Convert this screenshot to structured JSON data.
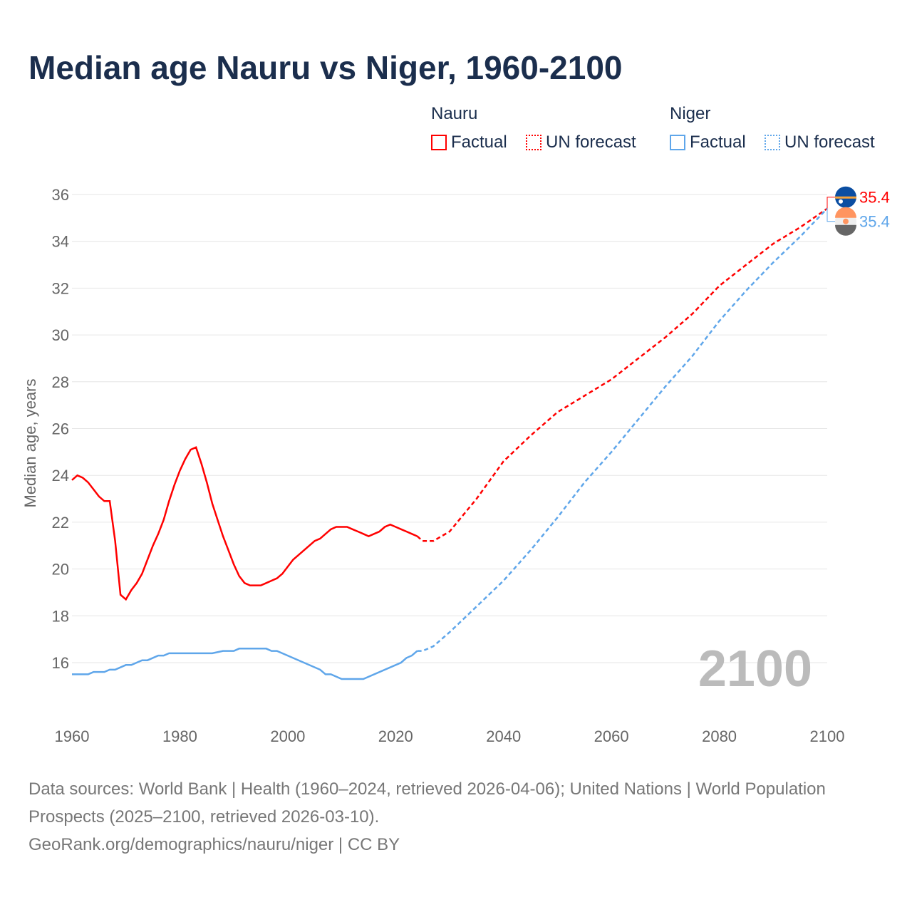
{
  "chart_data": {
    "type": "line",
    "title": "Median age Nauru vs Niger, 1960-2100",
    "ylabel": "Median age, years",
    "xlim": [
      1960,
      2100
    ],
    "ylim": [
      14,
      36.5
    ],
    "xticks": [
      1960,
      1980,
      2000,
      2020,
      2040,
      2060,
      2080,
      2100
    ],
    "yticks": [
      16,
      18,
      20,
      22,
      24,
      26,
      28,
      30,
      32,
      34,
      36
    ],
    "year_label": "2100",
    "legend": {
      "groups": [
        {
          "name": "Nauru",
          "items": [
            "Factual",
            "UN forecast"
          ]
        },
        {
          "name": "Niger",
          "items": [
            "Factual",
            "UN forecast"
          ]
        }
      ]
    },
    "series": [
      {
        "name": "Nauru",
        "color": "#ff0000",
        "end_label": "35.4",
        "factual": [
          [
            1960,
            23.8
          ],
          [
            1961,
            24.0
          ],
          [
            1962,
            23.9
          ],
          [
            1963,
            23.7
          ],
          [
            1964,
            23.4
          ],
          [
            1965,
            23.1
          ],
          [
            1966,
            22.9
          ],
          [
            1967,
            22.9
          ],
          [
            1968,
            21.2
          ],
          [
            1969,
            18.9
          ],
          [
            1970,
            18.7
          ],
          [
            1971,
            19.1
          ],
          [
            1972,
            19.4
          ],
          [
            1973,
            19.8
          ],
          [
            1974,
            20.4
          ],
          [
            1975,
            21.0
          ],
          [
            1976,
            21.5
          ],
          [
            1977,
            22.1
          ],
          [
            1978,
            22.9
          ],
          [
            1979,
            23.6
          ],
          [
            1980,
            24.2
          ],
          [
            1981,
            24.7
          ],
          [
            1982,
            25.1
          ],
          [
            1983,
            25.2
          ],
          [
            1984,
            24.5
          ],
          [
            1985,
            23.7
          ],
          [
            1986,
            22.8
          ],
          [
            1987,
            22.1
          ],
          [
            1988,
            21.4
          ],
          [
            1989,
            20.8
          ],
          [
            1990,
            20.2
          ],
          [
            1991,
            19.7
          ],
          [
            1992,
            19.4
          ],
          [
            1993,
            19.3
          ],
          [
            1994,
            19.3
          ],
          [
            1995,
            19.3
          ],
          [
            1996,
            19.4
          ],
          [
            1997,
            19.5
          ],
          [
            1998,
            19.6
          ],
          [
            1999,
            19.8
          ],
          [
            2000,
            20.1
          ],
          [
            2001,
            20.4
          ],
          [
            2002,
            20.6
          ],
          [
            2003,
            20.8
          ],
          [
            2004,
            21.0
          ],
          [
            2005,
            21.2
          ],
          [
            2006,
            21.3
          ],
          [
            2007,
            21.5
          ],
          [
            2008,
            21.7
          ],
          [
            2009,
            21.8
          ],
          [
            2010,
            21.8
          ],
          [
            2011,
            21.8
          ],
          [
            2012,
            21.7
          ],
          [
            2013,
            21.6
          ],
          [
            2014,
            21.5
          ],
          [
            2015,
            21.4
          ],
          [
            2016,
            21.5
          ],
          [
            2017,
            21.6
          ],
          [
            2018,
            21.8
          ],
          [
            2019,
            21.9
          ],
          [
            2020,
            21.8
          ],
          [
            2021,
            21.7
          ],
          [
            2022,
            21.6
          ],
          [
            2023,
            21.5
          ],
          [
            2024,
            21.4
          ]
        ],
        "forecast": [
          [
            2024,
            21.4
          ],
          [
            2025,
            21.2
          ],
          [
            2027,
            21.2
          ],
          [
            2030,
            21.6
          ],
          [
            2035,
            23.0
          ],
          [
            2040,
            24.6
          ],
          [
            2045,
            25.7
          ],
          [
            2050,
            26.7
          ],
          [
            2055,
            27.4
          ],
          [
            2060,
            28.1
          ],
          [
            2065,
            29.0
          ],
          [
            2070,
            29.9
          ],
          [
            2075,
            30.9
          ],
          [
            2080,
            32.1
          ],
          [
            2085,
            33.0
          ],
          [
            2090,
            33.9
          ],
          [
            2095,
            34.6
          ],
          [
            2100,
            35.4
          ]
        ]
      },
      {
        "name": "Niger",
        "color": "#5fa6ea",
        "end_label": "35.4",
        "factual": [
          [
            1960,
            15.5
          ],
          [
            1963,
            15.5
          ],
          [
            1964,
            15.6
          ],
          [
            1966,
            15.6
          ],
          [
            1967,
            15.7
          ],
          [
            1968,
            15.7
          ],
          [
            1970,
            15.9
          ],
          [
            1971,
            15.9
          ],
          [
            1973,
            16.1
          ],
          [
            1974,
            16.1
          ],
          [
            1976,
            16.3
          ],
          [
            1977,
            16.3
          ],
          [
            1978,
            16.4
          ],
          [
            1986,
            16.4
          ],
          [
            1988,
            16.5
          ],
          [
            1990,
            16.5
          ],
          [
            1991,
            16.6
          ],
          [
            1996,
            16.6
          ],
          [
            1997,
            16.5
          ],
          [
            1998,
            16.5
          ],
          [
            2006,
            15.7
          ],
          [
            2007,
            15.5
          ],
          [
            2008,
            15.5
          ],
          [
            2010,
            15.3
          ],
          [
            2014,
            15.3
          ],
          [
            2021,
            16.0
          ],
          [
            2022,
            16.2
          ],
          [
            2023,
            16.3
          ],
          [
            2024,
            16.5
          ]
        ],
        "forecast": [
          [
            2024,
            16.5
          ],
          [
            2025,
            16.5
          ],
          [
            2027,
            16.7
          ],
          [
            2030,
            17.3
          ],
          [
            2035,
            18.4
          ],
          [
            2040,
            19.5
          ],
          [
            2045,
            20.8
          ],
          [
            2050,
            22.2
          ],
          [
            2055,
            23.7
          ],
          [
            2060,
            25.0
          ],
          [
            2065,
            26.4
          ],
          [
            2070,
            27.8
          ],
          [
            2075,
            29.1
          ],
          [
            2080,
            30.6
          ],
          [
            2085,
            31.9
          ],
          [
            2090,
            33.1
          ],
          [
            2095,
            34.2
          ],
          [
            2100,
            35.4
          ]
        ]
      }
    ]
  },
  "footer": {
    "line1": "Data sources: World Bank | Health (1960–2024, retrieved 2026-04-06); United Nations | World Population Prospects (2025–2100, retrieved 2026-03-10).",
    "line2": "GeoRank.org/demographics/nauru/niger | CC BY"
  }
}
